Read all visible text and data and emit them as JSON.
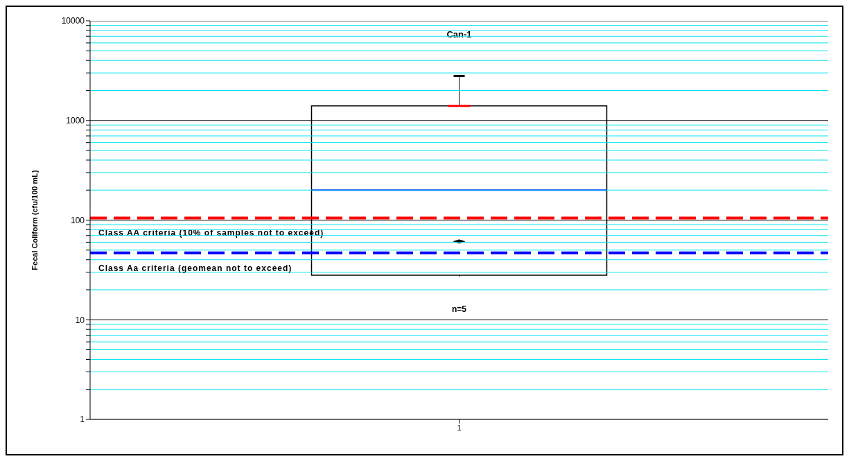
{
  "chart_data": {
    "type": "box",
    "title": "Can-1",
    "ylabel": "Fecal Coliform (cfu/100 mL)",
    "categories": [
      "1"
    ],
    "boxes": [
      {
        "low": 27,
        "q1": 28,
        "median": 200,
        "q3": 1400,
        "high": 2800,
        "mean": 61
      }
    ],
    "log": "y",
    "ylim": [
      1,
      10000
    ],
    "yticks": [
      1,
      {
        "value": 2,
        "label": null
      },
      {
        "value": 3,
        "label": null
      },
      {
        "value": 4,
        "label": null
      },
      {
        "value": 5,
        "label": null
      },
      {
        "value": 6,
        "label": null
      },
      {
        "value": 7,
        "label": null
      },
      {
        "value": 8,
        "label": null
      },
      {
        "value": 9,
        "label": null
      },
      10,
      {
        "value": 20,
        "label": null
      },
      {
        "value": 30,
        "label": null
      },
      {
        "value": 40,
        "label": null
      },
      {
        "value": 50,
        "label": null
      },
      {
        "value": 60,
        "label": null
      },
      {
        "value": 70,
        "label": null
      },
      {
        "value": 80,
        "label": null
      },
      {
        "value": 90,
        "label": null
      },
      100,
      {
        "value": 200,
        "label": null
      },
      {
        "value": 300,
        "label": null
      },
      {
        "value": 400,
        "label": null
      },
      {
        "value": 500,
        "label": null
      },
      {
        "value": 600,
        "label": null
      },
      {
        "value": 700,
        "label": null
      },
      {
        "value": 800,
        "label": null
      },
      {
        "value": 900,
        "label": null
      },
      1000,
      {
        "value": 2000,
        "label": null
      },
      {
        "value": 3000,
        "label": null
      },
      {
        "value": 4000,
        "label": null
      },
      {
        "value": 5000,
        "label": null
      },
      {
        "value": 6000,
        "label": null
      },
      {
        "value": 7000,
        "label": null
      },
      {
        "value": 8000,
        "label": null
      },
      {
        "value": 9000,
        "label": null
      },
      10000
    ],
    "grid": "y",
    "ref_lines": [
      {
        "axis": "y",
        "value": 105,
        "label": "Class AA criteria (10% of samples not to exceed)",
        "color": "#ff0000",
        "line_style": "dashed"
      },
      {
        "axis": "y",
        "value": 47,
        "label": "Class Aa criteria (geomean not to exceed)",
        "color": "#0000ff",
        "line_style": "dashed"
      }
    ],
    "annotations": [
      "n=5"
    ]
  }
}
